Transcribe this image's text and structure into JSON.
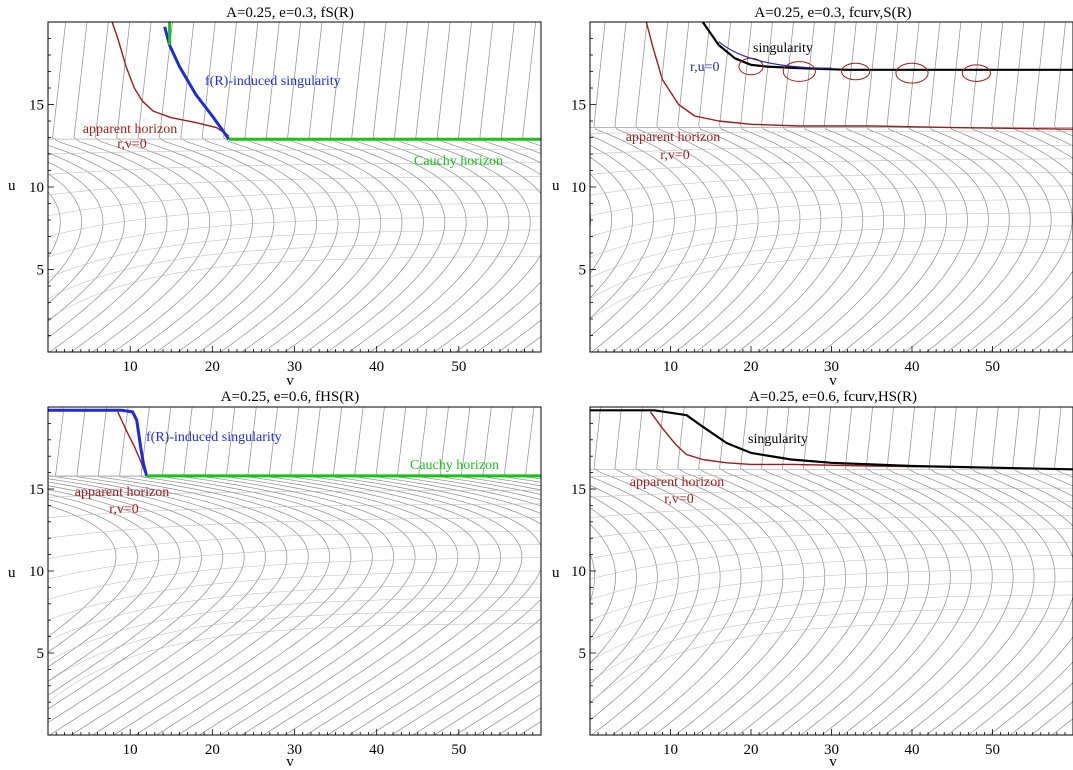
{
  "colors": {
    "apparent_horizon": "#9b1c1c",
    "singularity_frs": "#1e2cd8",
    "cauchy": "#19c219",
    "singularity_curv": "#000000",
    "r_u_contour": "#2a2aa0",
    "grid_lines": "#8c8c8c"
  },
  "chart_data": [
    {
      "type": "line",
      "title": "A=0.25, e=0.3, fS(R)",
      "xlabel": "v",
      "ylabel": "u",
      "xlim": [
        0,
        60
      ],
      "ylim": [
        0,
        20
      ],
      "xticks": [
        "10",
        "20",
        "30",
        "40",
        "50"
      ],
      "yticks": [
        "5",
        "10",
        "15"
      ],
      "annotations": {
        "apparent_horizon": "apparent horizon",
        "apparent_horizon_eq": "r,v=0",
        "singularity": "f(R)-induced singularity",
        "cauchy": "Cauchy horizon"
      },
      "series": [
        {
          "key": "apparent_horizon",
          "x": [
            7.8,
            8.5,
            9.5,
            10.5,
            11.5,
            12.8,
            15,
            18,
            20.5,
            22
          ],
          "y": [
            20,
            19,
            17.3,
            16,
            15.2,
            14.6,
            14.2,
            13.9,
            13.6,
            13.1
          ]
        },
        {
          "key": "singularity",
          "x": [
            14.2,
            14.8,
            16,
            18,
            20,
            21.3,
            22
          ],
          "y": [
            19.7,
            18.6,
            17.3,
            15.6,
            14.3,
            13.4,
            12.9
          ]
        },
        {
          "key": "cauchy",
          "x": [
            22,
            60
          ],
          "y": [
            12.9,
            12.9
          ]
        },
        {
          "key": "cauchy",
          "x": [
            14.8,
            14.8
          ],
          "y": [
            20,
            18.6
          ]
        }
      ]
    },
    {
      "type": "line",
      "title": "A=0.25, e=0.3, fcurv,S(R)",
      "xlabel": "v",
      "ylabel": "u",
      "xlim": [
        0,
        60
      ],
      "ylim": [
        0,
        20
      ],
      "xticks": [
        "10",
        "20",
        "30",
        "40",
        "50"
      ],
      "yticks": [
        "5",
        "10",
        "15"
      ],
      "annotations": {
        "apparent_horizon": "apparent horizon",
        "apparent_horizon_eq": "r,v=0",
        "singularity": "singularity",
        "r_u_label": "r,u=0"
      },
      "series": [
        {
          "key": "apparent_horizon",
          "x": [
            7,
            7.8,
            9,
            11,
            13,
            16,
            20,
            26,
            35,
            45,
            60
          ],
          "y": [
            20,
            18.5,
            16.5,
            15,
            14.3,
            14,
            13.8,
            13.7,
            13.7,
            13.6,
            13.5
          ]
        },
        {
          "key": "singularity",
          "x": [
            14,
            16,
            18,
            20,
            22,
            26,
            32,
            40,
            50,
            60
          ],
          "y": [
            20,
            18.6,
            17.8,
            17.4,
            17.3,
            17.2,
            17.1,
            17.1,
            17.1,
            17.1
          ]
        }
      ]
    },
    {
      "type": "line",
      "title": "A=0.25, e=0.6, fHS(R)",
      "xlabel": "v",
      "ylabel": "u",
      "xlim": [
        0,
        60
      ],
      "ylim": [
        0,
        20
      ],
      "xticks": [
        "10",
        "20",
        "30",
        "40",
        "50"
      ],
      "yticks": [
        "5",
        "10",
        "15"
      ],
      "annotations": {
        "apparent_horizon": "apparent horizon",
        "apparent_horizon_eq": "r,v=0",
        "singularity": "f(R)-induced singularity",
        "cauchy": "Cauchy horizon"
      },
      "series": [
        {
          "key": "apparent_horizon",
          "x": [
            8.5,
            9.5,
            10.5,
            11.2,
            11.8
          ],
          "y": [
            19.7,
            18.6,
            17.6,
            16.8,
            16
          ]
        },
        {
          "key": "singularity",
          "x": [
            0,
            5,
            9,
            10.3,
            10.8,
            11,
            11.3,
            11.6,
            12
          ],
          "y": [
            19.8,
            19.8,
            19.8,
            19.7,
            19.2,
            18.5,
            17.5,
            16.6,
            15.8
          ]
        },
        {
          "key": "cauchy",
          "x": [
            12,
            60
          ],
          "y": [
            15.8,
            15.8
          ]
        }
      ]
    },
    {
      "type": "line",
      "title": "A=0.25, e=0.6, fcurv,HS(R)",
      "xlabel": "v",
      "ylabel": "u",
      "xlim": [
        0,
        60
      ],
      "ylim": [
        0,
        20
      ],
      "xticks": [
        "10",
        "20",
        "30",
        "40",
        "50"
      ],
      "yticks": [
        "5",
        "10",
        "15"
      ],
      "annotations": {
        "apparent_horizon": "apparent horizon",
        "apparent_horizon_eq": "r,v=0",
        "singularity": "singularity"
      },
      "series": [
        {
          "key": "apparent_horizon",
          "x": [
            7.5,
            9,
            10.5,
            11.3,
            12,
            14,
            17,
            20,
            25,
            35,
            50,
            60
          ],
          "y": [
            19.7,
            18.7,
            17.8,
            17.4,
            17.1,
            16.8,
            16.6,
            16.5,
            16.5,
            16.4,
            16.3,
            16.2
          ]
        },
        {
          "key": "singularity",
          "x": [
            0,
            8,
            12,
            14,
            17,
            20,
            25,
            30,
            40,
            50,
            60
          ],
          "y": [
            19.8,
            19.8,
            19.5,
            18.8,
            17.8,
            17.2,
            16.8,
            16.6,
            16.4,
            16.3,
            16.2
          ]
        }
      ]
    }
  ]
}
